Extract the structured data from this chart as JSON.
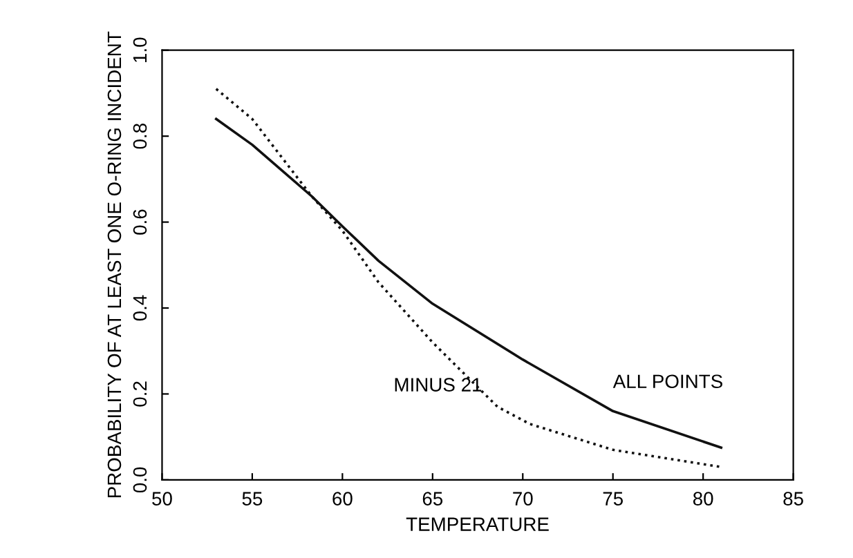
{
  "chart_data": {
    "type": "line",
    "xlabel": "TEMPERATURE",
    "ylabel": "PROBABILITY OF AT LEAST ONE O-RING INCIDENT",
    "xlim": [
      50,
      85
    ],
    "ylim": [
      0,
      1
    ],
    "xticks": [
      50,
      55,
      60,
      65,
      70,
      75,
      80,
      85
    ],
    "yticks": [
      {
        "value": 0,
        "label": "0.0"
      },
      {
        "value": 0.2,
        "label": "0.2"
      },
      {
        "value": 0.4,
        "label": "0.4"
      },
      {
        "value": 0.6,
        "label": "0.6"
      },
      {
        "value": 0.8,
        "label": "0.8"
      },
      {
        "value": 1,
        "label": "1.0"
      }
    ],
    "grid": false,
    "legend": false,
    "marker": "none",
    "series": [
      {
        "name": "ALL POINTS",
        "color": "#111111",
        "line_style": "solid",
        "x": [
          53,
          55,
          58.3,
          60,
          62,
          65,
          70,
          75,
          81
        ],
        "values": [
          0.84,
          0.78,
          0.66,
          0.59,
          0.51,
          0.41,
          0.28,
          0.16,
          0.075
        ]
      },
      {
        "name": "MINUS 21",
        "color": "#111111",
        "line_style": "dotted",
        "x": [
          53,
          55,
          58.3,
          60,
          62,
          65,
          68.6,
          70.4,
          75,
          81
        ],
        "values": [
          0.91,
          0.84,
          0.66,
          0.58,
          0.46,
          0.32,
          0.17,
          0.13,
          0.07,
          0.03
        ]
      }
    ]
  }
}
